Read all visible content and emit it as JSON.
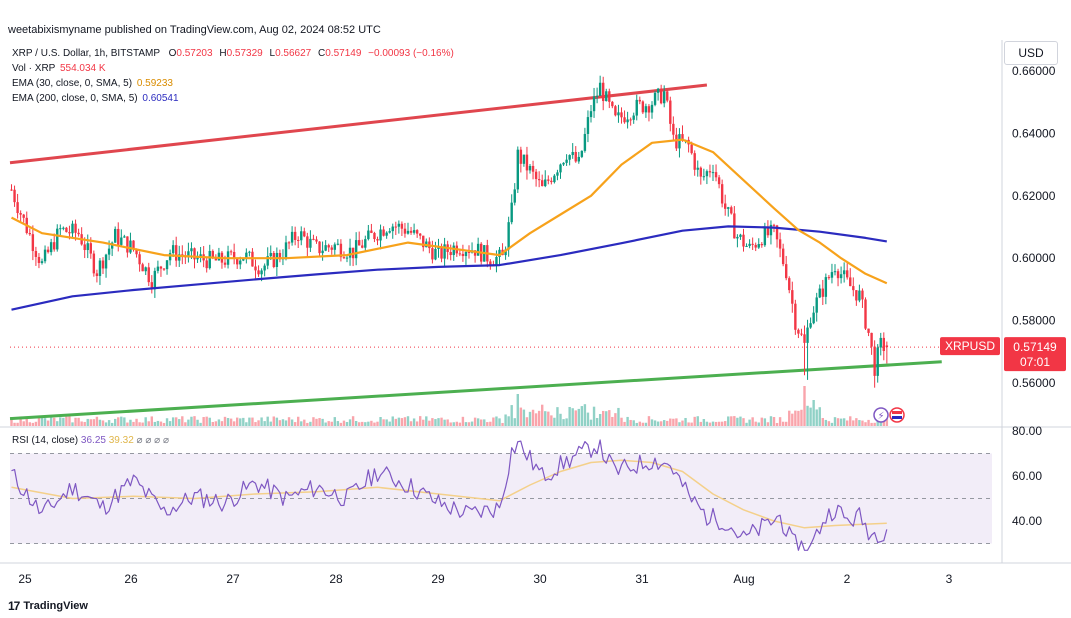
{
  "publisher": {
    "text": "weetabixismyname published on TradingView.com, Aug 02, 2024 08:52 UTC"
  },
  "legend": {
    "symbol": "XRP / U.S. Dollar, 1h, BITSTAMP",
    "o_label": "O",
    "o_value": "0.57203",
    "h_label": "H",
    "h_value": "0.57329",
    "l_label": "L",
    "l_value": "0.56627",
    "c_label": "C",
    "c_value": "0.57149",
    "change": "−0.00093 (−0.16%)",
    "vol_label": "Vol · XRP",
    "vol_value": "554.034 K",
    "ema30_label": "EMA (30, close, 0, SMA, 5)",
    "ema30_value": "0.59233",
    "ema200_label": "EMA (200, close, 0, SMA, 5)",
    "ema200_value": "0.60541"
  },
  "currency": "USD",
  "price_tag": {
    "symbol": "XRPUSD",
    "price": "0.57149",
    "countdown": "07:01"
  },
  "rsi_legend": {
    "label": "RSI (14, close)",
    "rsi": "36.25",
    "ma": "39.32",
    "icons": "⌀ ⌀ ⌀ ⌀"
  },
  "brand": {
    "logo": "17",
    "name": "TradingView"
  },
  "colors": {
    "up": "#089981",
    "down": "#f23645",
    "ema30": "#f7a21b",
    "ema200": "#2b2bbf",
    "resistance": "#e0464e",
    "support": "#4caf50",
    "rsi": "#7e57c2",
    "rsi_ma": "#f4d08a",
    "rsi_band": "#ede7f6"
  },
  "chart_data": [
    {
      "type": "candlestick",
      "title": "XRP / U.S. Dollar, 1h, BITSTAMP",
      "x_ticks": [
        "25",
        "26",
        "27",
        "28",
        "29",
        "30",
        "31",
        "Aug",
        "2",
        "3"
      ],
      "y_ticks": [
        "0.66000",
        "0.64000",
        "0.62000",
        "0.60000",
        "0.58000",
        "0.56000"
      ],
      "ylim": [
        0.5545,
        0.6645
      ],
      "anchors": [
        [
          0,
          0.622
        ],
        [
          4,
          0.612
        ],
        [
          10,
          0.598
        ],
        [
          16,
          0.609
        ],
        [
          22,
          0.608
        ],
        [
          28,
          0.596
        ],
        [
          34,
          0.607
        ],
        [
          40,
          0.603
        ],
        [
          46,
          0.593
        ],
        [
          52,
          0.602
        ],
        [
          60,
          0.6
        ],
        [
          68,
          0.599
        ],
        [
          76,
          0.601
        ],
        [
          82,
          0.597
        ],
        [
          88,
          0.601
        ],
        [
          94,
          0.608
        ],
        [
          100,
          0.603
        ],
        [
          106,
          0.604
        ],
        [
          112,
          0.602
        ],
        [
          118,
          0.607
        ],
        [
          124,
          0.611
        ],
        [
          130,
          0.609
        ],
        [
          136,
          0.604
        ],
        [
          140,
          0.601
        ],
        [
          146,
          0.604
        ],
        [
          152,
          0.603
        ],
        [
          157,
          0.6
        ],
        [
          161,
          0.6
        ],
        [
          164,
          0.615
        ],
        [
          166,
          0.633
        ],
        [
          170,
          0.628
        ],
        [
          174,
          0.622
        ],
        [
          178,
          0.628
        ],
        [
          182,
          0.634
        ],
        [
          186,
          0.63
        ],
        [
          190,
          0.648
        ],
        [
          193,
          0.655
        ],
        [
          198,
          0.644
        ],
        [
          204,
          0.648
        ],
        [
          210,
          0.65
        ],
        [
          214,
          0.653
        ],
        [
          217,
          0.638
        ],
        [
          222,
          0.636
        ],
        [
          226,
          0.625
        ],
        [
          230,
          0.63
        ],
        [
          234,
          0.616
        ],
        [
          238,
          0.607
        ],
        [
          242,
          0.603
        ],
        [
          246,
          0.607
        ],
        [
          250,
          0.608
        ],
        [
          254,
          0.596
        ],
        [
          257,
          0.58
        ],
        [
          260,
          0.572
        ],
        [
          262,
          0.582
        ],
        [
          266,
          0.59
        ],
        [
          270,
          0.598
        ],
        [
          274,
          0.592
        ],
        [
          278,
          0.588
        ],
        [
          281,
          0.576
        ],
        [
          283,
          0.565
        ],
        [
          285,
          0.572
        ],
        [
          287,
          0.5715
        ]
      ],
      "ema30": {
        "name": "EMA (30, close, 0, SMA, 5)",
        "points": [
          [
            0,
            0.613
          ],
          [
            10,
            0.608
          ],
          [
            30,
            0.605
          ],
          [
            50,
            0.601
          ],
          [
            70,
            0.6
          ],
          [
            90,
            0.6
          ],
          [
            110,
            0.601
          ],
          [
            130,
            0.605
          ],
          [
            145,
            0.603
          ],
          [
            160,
            0.601
          ],
          [
            170,
            0.608
          ],
          [
            180,
            0.614
          ],
          [
            190,
            0.62
          ],
          [
            200,
            0.63
          ],
          [
            210,
            0.637
          ],
          [
            220,
            0.638
          ],
          [
            230,
            0.634
          ],
          [
            240,
            0.625
          ],
          [
            250,
            0.616
          ],
          [
            258,
            0.609
          ],
          [
            265,
            0.605
          ],
          [
            272,
            0.6
          ],
          [
            280,
            0.595
          ],
          [
            287,
            0.592
          ]
        ]
      },
      "ema200": {
        "name": "EMA (200, close, 0, SMA, 5)",
        "points": [
          [
            0,
            0.5835
          ],
          [
            20,
            0.5878
          ],
          [
            40,
            0.5898
          ],
          [
            60,
            0.5915
          ],
          [
            80,
            0.5932
          ],
          [
            100,
            0.5948
          ],
          [
            120,
            0.5963
          ],
          [
            140,
            0.5972
          ],
          [
            160,
            0.5978
          ],
          [
            180,
            0.601
          ],
          [
            200,
            0.6048
          ],
          [
            220,
            0.6088
          ],
          [
            235,
            0.6102
          ],
          [
            250,
            0.6098
          ],
          [
            265,
            0.6085
          ],
          [
            280,
            0.6065
          ],
          [
            287,
            0.6054
          ]
        ]
      },
      "resistance_line": [
        [
          0,
          0.6306
        ],
        [
          228,
          0.6555
        ]
      ],
      "support_line": [
        [
          0,
          0.5486
        ],
        [
          305,
          0.5668
        ]
      ],
      "last_price": 0.57149
    },
    {
      "type": "line",
      "title": "RSI (14, close)",
      "y_ticks": [
        "80.00",
        "60.00",
        "40.00"
      ],
      "ylim": [
        22,
        82
      ],
      "bands": [
        30,
        70
      ],
      "series": [
        {
          "name": "RSI",
          "points": [
            [
              0,
              61
            ],
            [
              10,
              43
            ],
            [
              20,
              55
            ],
            [
              30,
              46
            ],
            [
              40,
              58
            ],
            [
              50,
              44
            ],
            [
              60,
              51
            ],
            [
              70,
              48
            ],
            [
              80,
              57
            ],
            [
              90,
              50
            ],
            [
              100,
              55
            ],
            [
              110,
              50
            ],
            [
              120,
              62
            ],
            [
              130,
              56
            ],
            [
              140,
              48
            ],
            [
              150,
              43
            ],
            [
              160,
              46
            ],
            [
              164,
              71
            ],
            [
              166,
              75
            ],
            [
              174,
              60
            ],
            [
              184,
              68
            ],
            [
              192,
              74
            ],
            [
              198,
              62
            ],
            [
              210,
              67
            ],
            [
              216,
              65
            ],
            [
              222,
              51
            ],
            [
              228,
              42
            ],
            [
              234,
              40
            ],
            [
              240,
              32
            ],
            [
              246,
              37
            ],
            [
              252,
              42
            ],
            [
              256,
              30
            ],
            [
              262,
              28
            ],
            [
              266,
              40
            ],
            [
              270,
              46
            ],
            [
              274,
              40
            ],
            [
              278,
              42
            ],
            [
              282,
              34
            ],
            [
              287,
              36
            ]
          ]
        },
        {
          "name": "RSI MA",
          "points": [
            [
              0,
              55
            ],
            [
              20,
              50
            ],
            [
              40,
              51
            ],
            [
              60,
              50
            ],
            [
              80,
              52
            ],
            [
              100,
              53
            ],
            [
              120,
              55
            ],
            [
              140,
              52
            ],
            [
              160,
              49
            ],
            [
              170,
              56
            ],
            [
              180,
              62
            ],
            [
              190,
              66
            ],
            [
              200,
              67
            ],
            [
              210,
              66
            ],
            [
              220,
              62
            ],
            [
              230,
              52
            ],
            [
              240,
              45
            ],
            [
              250,
              40
            ],
            [
              260,
              37
            ],
            [
              270,
              38
            ],
            [
              287,
              39
            ]
          ]
        }
      ]
    }
  ]
}
